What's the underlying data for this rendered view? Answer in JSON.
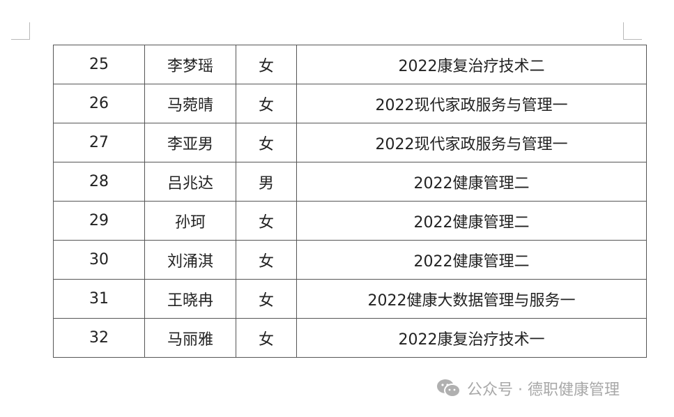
{
  "table": {
    "rows": [
      [
        "25",
        "李梦瑶",
        "女",
        "2022康复治疗技术二"
      ],
      [
        "26",
        "马菀晴",
        "女",
        "2022现代家政服务与管理一"
      ],
      [
        "27",
        "李亚男",
        "女",
        "2022现代家政服务与管理一"
      ],
      [
        "28",
        "吕兆达",
        "男",
        "2022健康管理二"
      ],
      [
        "29",
        "孙珂",
        "女",
        "2022健康管理二"
      ],
      [
        "30",
        "刘涌淇",
        "女",
        "2022健康管理二"
      ],
      [
        "31",
        "王晓冉",
        "女",
        "2022健康大数据管理与服务一"
      ],
      [
        "32",
        "马丽雅",
        "女",
        "2022康复治疗技术一"
      ]
    ]
  },
  "watermark": {
    "icon": "wechat-icon",
    "text": "公众号 · 德职健康管理"
  }
}
